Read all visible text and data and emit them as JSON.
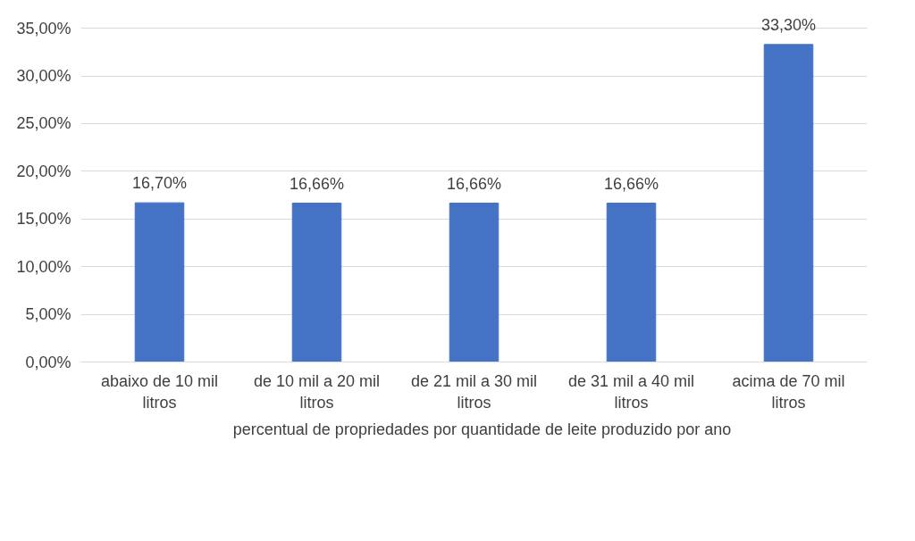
{
  "chart_data": {
    "type": "bar",
    "categories": [
      "abaixo de 10 mil litros",
      "de 10 mil a 20 mil litros",
      "de 21 mil a 30 mil litros",
      "de 31 mil a 40 mil litros",
      "acima de 70 mil litros"
    ],
    "series": [
      {
        "name": "percentual de propriedades por quantidade de leite produzido por ano",
        "color": "#4472c4",
        "values": [
          16.7,
          16.66,
          16.66,
          16.66,
          33.3
        ],
        "value_labels": [
          "16,70%",
          "16,66%",
          "16,66%",
          "16,66%",
          "33,30%"
        ]
      }
    ],
    "ylim": [
      0,
      35
    ],
    "yticks": [
      {
        "value": 0,
        "label": "0,00%"
      },
      {
        "value": 5,
        "label": "5,00%"
      },
      {
        "value": 10,
        "label": "10,00%"
      },
      {
        "value": 15,
        "label": "15,00%"
      },
      {
        "value": 20,
        "label": "20,00%"
      },
      {
        "value": 25,
        "label": "25,00%"
      },
      {
        "value": 30,
        "label": "30,00%"
      },
      {
        "value": 35,
        "label": "35,00%"
      }
    ],
    "grid": "y",
    "legend": "bottom"
  }
}
